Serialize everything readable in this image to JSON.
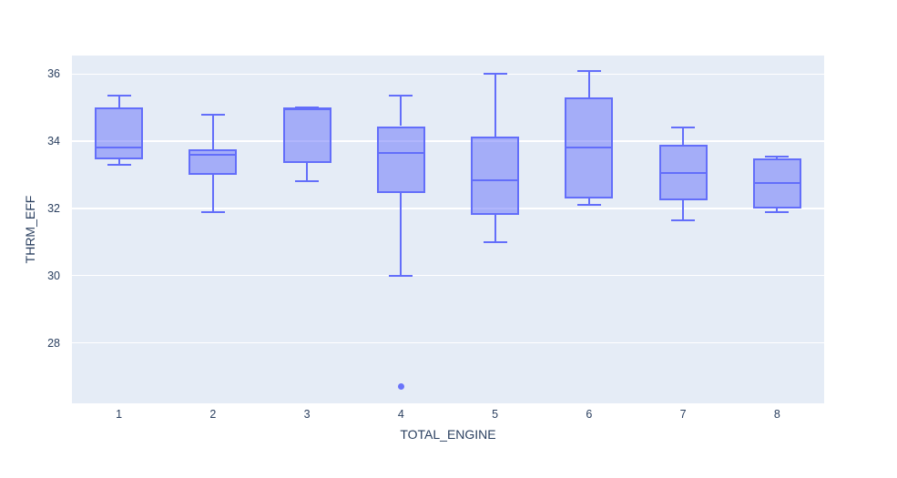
{
  "colors": {
    "box_line": "#636efa",
    "box_fill": "rgba(99,110,250,0.5)",
    "plot_bg": "#e5ecf6",
    "grid": "#ffffff",
    "text": "#2a3f5f",
    "paper_bg": "#ffffff"
  },
  "chart_data": {
    "type": "box",
    "title": "",
    "xlabel": "TOTAL_ENGINE",
    "ylabel": "THRM_EFF",
    "categories": [
      "1",
      "2",
      "3",
      "4",
      "5",
      "6",
      "7",
      "8"
    ],
    "y_ticks": [
      28,
      30,
      32,
      34,
      36
    ],
    "ylim": [
      26.2,
      36.55
    ],
    "grid": true,
    "legend": "none",
    "boxes": [
      {
        "category": "1",
        "min": 33.3,
        "q1": 33.45,
        "median": 33.8,
        "q3": 35.0,
        "max": 35.35,
        "outliers": []
      },
      {
        "category": "2",
        "min": 31.9,
        "q1": 33.0,
        "median": 33.6,
        "q3": 33.75,
        "max": 34.8,
        "outliers": []
      },
      {
        "category": "3",
        "min": 32.8,
        "q1": 33.35,
        "median": 34.95,
        "q3": 35.0,
        "max": 35.0,
        "outliers": []
      },
      {
        "category": "4",
        "min": 30.0,
        "q1": 32.45,
        "median": 33.65,
        "q3": 34.45,
        "max": 35.35,
        "outliers": [
          26.7
        ]
      },
      {
        "category": "5",
        "min": 31.0,
        "q1": 31.8,
        "median": 32.85,
        "q3": 34.15,
        "max": 36.0,
        "outliers": []
      },
      {
        "category": "6",
        "min": 32.1,
        "q1": 32.3,
        "median": 33.8,
        "q3": 35.3,
        "max": 36.1,
        "outliers": []
      },
      {
        "category": "7",
        "min": 31.65,
        "q1": 32.25,
        "median": 33.05,
        "q3": 33.9,
        "max": 34.4,
        "outliers": []
      },
      {
        "category": "8",
        "min": 31.9,
        "q1": 32.0,
        "median": 32.75,
        "q3": 33.5,
        "max": 33.55,
        "outliers": []
      }
    ]
  }
}
